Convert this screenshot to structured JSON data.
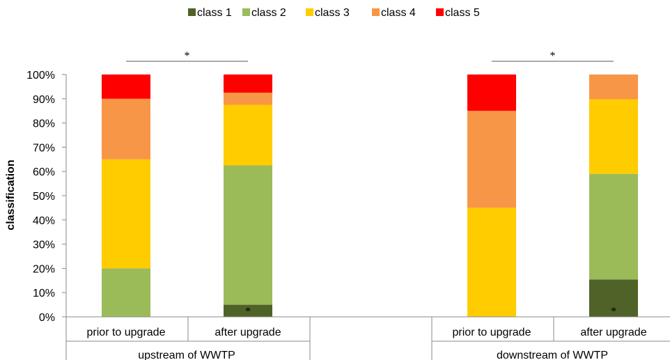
{
  "chart_data": {
    "type": "bar",
    "stacked": true,
    "ylabel": "classification",
    "ylim": [
      0,
      100
    ],
    "y_ticks": [
      "0%",
      "10%",
      "20%",
      "30%",
      "40%",
      "50%",
      "60%",
      "70%",
      "80%",
      "90%",
      "100%"
    ],
    "categories": [
      "prior to upgrade",
      "after upgrade",
      "prior to upgrade",
      "after upgrade"
    ],
    "groups": [
      {
        "label": "upstream of WWTP",
        "categories": [
          "prior to upgrade",
          "after upgrade"
        ]
      },
      {
        "label": "downstream of WWTP",
        "categories": [
          "prior to upgrade",
          "after upgrade"
        ]
      }
    ],
    "series": [
      {
        "name": "class 1",
        "color": "#4f6228",
        "values": [
          0,
          5,
          0,
          15.4
        ]
      },
      {
        "name": "class 2",
        "color": "#9bbb59",
        "values": [
          20,
          57.5,
          0,
          43.6
        ]
      },
      {
        "name": "class 3",
        "color": "#ffcc00",
        "values": [
          45,
          25,
          45,
          30.8
        ]
      },
      {
        "name": "class 4",
        "color": "#f79646",
        "values": [
          25,
          5,
          40,
          10.2
        ]
      },
      {
        "name": "class 5",
        "color": "#ff0000",
        "values": [
          10,
          7.5,
          15,
          0
        ]
      }
    ],
    "legend_position": "top",
    "grid": false,
    "significance": [
      {
        "type": "bracket",
        "label": "*",
        "group": "upstream of WWTP"
      },
      {
        "type": "bracket",
        "label": "*",
        "group": "downstream of WWTP"
      },
      {
        "type": "bar-mark",
        "label": "*",
        "category_index": 1,
        "series": "class 1"
      },
      {
        "type": "bar-mark",
        "label": "*",
        "category_index": 3,
        "series": "class 1"
      }
    ]
  }
}
